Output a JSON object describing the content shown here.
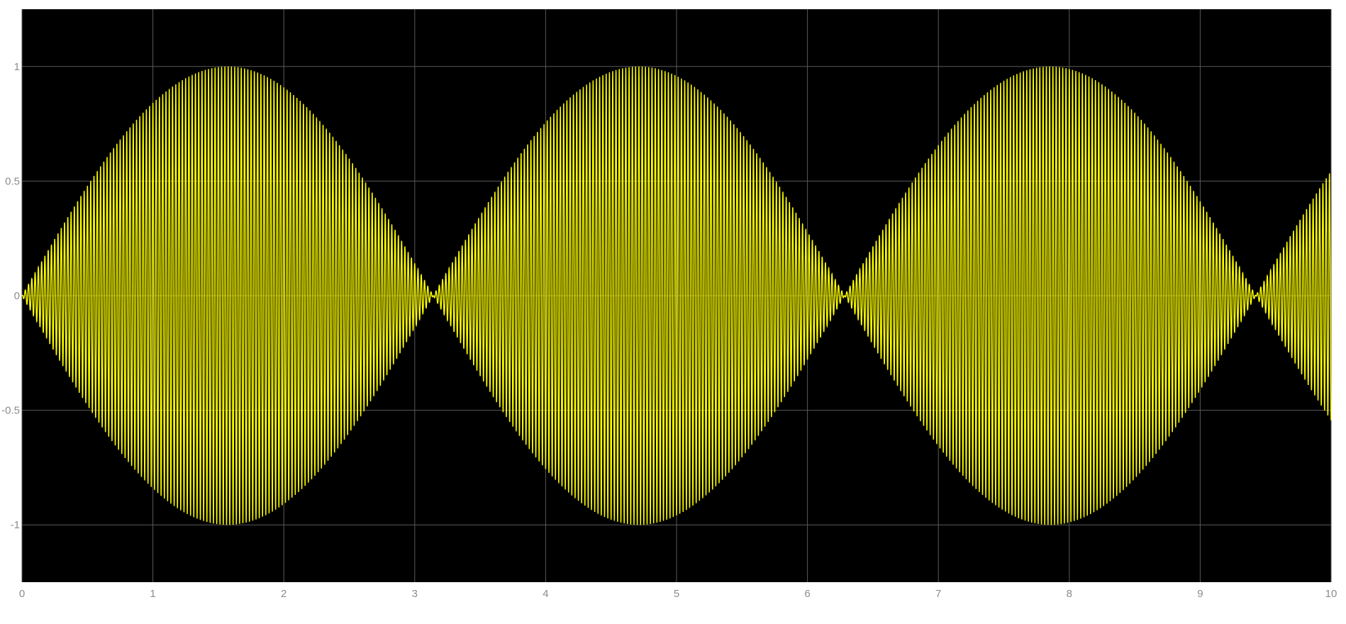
{
  "chart_data": {
    "type": "line",
    "title": "",
    "xlabel": "",
    "ylabel": "",
    "xlim": [
      0,
      10
    ],
    "ylim": [
      -1.25,
      1.25
    ],
    "x_ticks": [
      0,
      1,
      2,
      3,
      4,
      5,
      6,
      7,
      8,
      9,
      10
    ],
    "x_tick_labels": [
      "0",
      "1",
      "2",
      "3",
      "4",
      "5",
      "6",
      "7",
      "8",
      "9",
      "10"
    ],
    "y_ticks": [
      1,
      0.5,
      0,
      -0.5,
      -1
    ],
    "y_tick_labels": [
      "1",
      "0.5",
      "0",
      "-0.5",
      "-1"
    ],
    "grid": true,
    "background_color": "#000000",
    "grid_color": "#5a5a5a",
    "tick_label_color": "#8c8c8c",
    "series": [
      {
        "color": "#ffff00",
        "envelope": "sin(x)",
        "x_start": 0,
        "x_end": 10,
        "carrier_cycles_per_unit": 40,
        "envelope_peaks": [
          {
            "x": 1.5708,
            "y": 1
          },
          {
            "x": 4.7124,
            "y": -1
          },
          {
            "x": 7.854,
            "y": 1
          }
        ],
        "zero_crossings": [
          0,
          3.1416,
          6.2832,
          9.4248
        ],
        "end_value_approx": -0.544
      }
    ]
  }
}
